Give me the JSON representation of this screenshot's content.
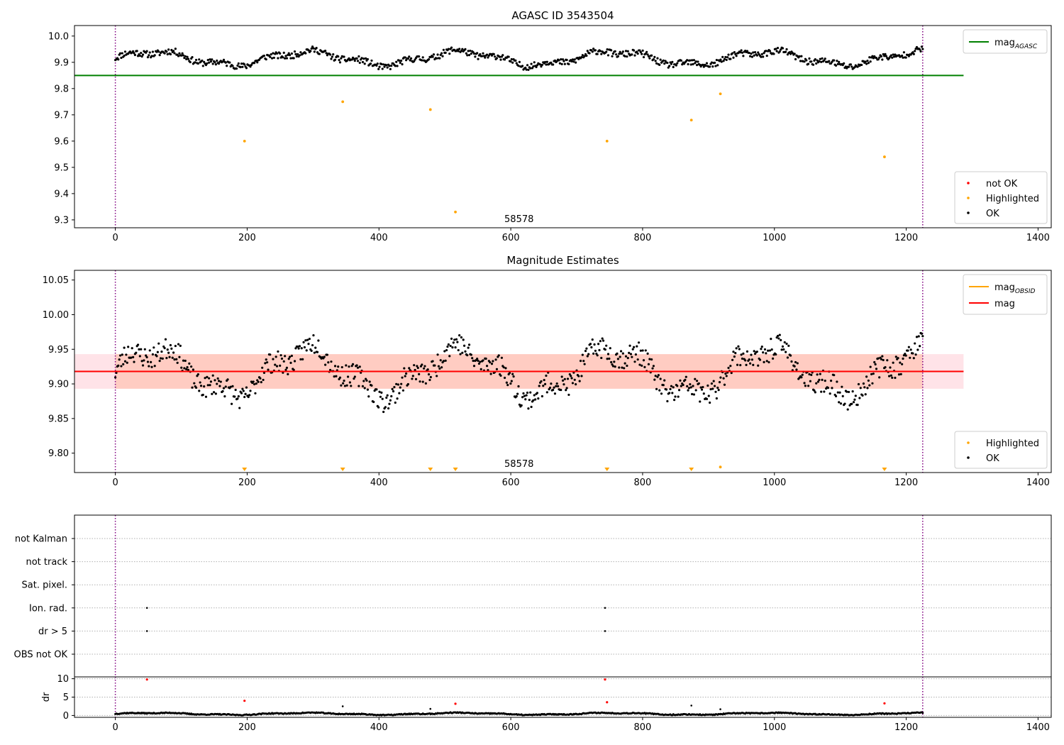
{
  "colors": {
    "ok": "#000000",
    "highlighted": "#ffa500",
    "not_ok": "#ff0000",
    "agasc_line": "#008000",
    "mag_line": "#ff0000",
    "mag_obsid_line": "#ffa500",
    "band_outer": "#ffc0cb",
    "band_inner": "#ffa07a",
    "obs_boundary": "#800080"
  },
  "chart_data": [
    {
      "type": "scatter",
      "title": "AGASC ID 3543504",
      "xlim": [
        -62,
        1420
      ],
      "ylim": [
        9.27,
        10.04
      ],
      "xticks": [
        0,
        200,
        400,
        600,
        800,
        1000,
        1200,
        1400
      ],
      "yticks": [
        9.3,
        9.4,
        9.5,
        9.6,
        9.7,
        9.8,
        9.9,
        10.0
      ],
      "ytick_labels": [
        "9.3",
        "9.4",
        "9.5",
        "9.6",
        "9.7",
        "9.8",
        "9.9",
        "10.0"
      ],
      "grid": false,
      "annotation": "58578",
      "obs_boundaries": [
        0,
        1225
      ],
      "mag_agasc": 9.85,
      "mag_agasc_x_range": [
        -62,
        1287
      ],
      "legend_lines": [
        {
          "label": "mag",
          "sub": "AGASC",
          "color": "#008000"
        }
      ],
      "legend_lines_position": "upper right",
      "legend_markers": [
        {
          "label": "not OK",
          "color": "#ff0000"
        },
        {
          "label": "Highlighted",
          "color": "#ffa500"
        },
        {
          "label": "OK",
          "color": "#000000"
        }
      ],
      "legend_markers_position": "lower right",
      "series": [
        {
          "name": "OK",
          "color": "#000000",
          "band": [
            9.87,
            9.96
          ],
          "x_range": [
            0,
            1225
          ],
          "n": 820
        },
        {
          "name": "Highlighted",
          "color": "#ffa500",
          "points": [
            [
              196,
              9.6
            ],
            [
              345,
              9.75
            ],
            [
              478,
              9.72
            ],
            [
              516,
              9.33
            ],
            [
              746,
              9.6
            ],
            [
              874,
              9.68
            ],
            [
              918,
              9.78
            ],
            [
              1167,
              9.54
            ]
          ]
        }
      ]
    },
    {
      "type": "scatter",
      "title": "Magnitude Estimates",
      "xlim": [
        -62,
        1420
      ],
      "ylim": [
        9.772,
        10.064
      ],
      "xticks": [
        0,
        200,
        400,
        600,
        800,
        1000,
        1200,
        1400
      ],
      "yticks": [
        9.8,
        9.85,
        9.9,
        9.95,
        10.0,
        10.05
      ],
      "ytick_labels": [
        "9.80",
        "9.85",
        "9.90",
        "9.95",
        "10.00",
        "10.05"
      ],
      "grid": false,
      "annotation": "58578",
      "obs_boundaries": [
        0,
        1225
      ],
      "mag": 9.918,
      "mag_obsid": 9.918,
      "band_outer": [
        9.893,
        9.943
      ],
      "band_inner": [
        9.893,
        9.943
      ],
      "band_x_range": [
        -62,
        1287
      ],
      "band_inner_x_range": [
        0,
        1225
      ],
      "legend_lines": [
        {
          "label": "mag",
          "sub": "OBSID",
          "color": "#ffa500"
        },
        {
          "label": "mag",
          "sub": "",
          "color": "#ff0000"
        }
      ],
      "legend_lines_position": "upper right",
      "legend_markers": [
        {
          "label": "Highlighted",
          "color": "#ffa500"
        },
        {
          "label": "OK",
          "color": "#000000"
        }
      ],
      "legend_markers_position": "lower right",
      "series": [
        {
          "name": "OK",
          "color": "#000000",
          "band": [
            9.86,
            9.975
          ],
          "x_range": [
            0,
            1225
          ],
          "n": 820
        },
        {
          "name": "Highlighted",
          "color": "#ffa500",
          "offscale_x": [
            196,
            345,
            478,
            516,
            746,
            874,
            1167
          ],
          "points": [
            [
              918,
              9.78
            ]
          ]
        }
      ]
    },
    {
      "type": "scatter",
      "title": "",
      "xlim": [
        -62,
        1420
      ],
      "obs_boundaries": [
        0,
        1225
      ],
      "flag_labels": [
        "not Kalman",
        "not track",
        "Sat. pixel.",
        "Ion. rad.",
        "dr > 5",
        "OBS not OK"
      ],
      "flags": [
        {
          "label": "Ion. rad.",
          "x": [
            48,
            743
          ]
        },
        {
          "label": "dr > 5",
          "x": [
            48,
            743
          ]
        }
      ],
      "grid": true
    },
    {
      "type": "scatter",
      "title": "",
      "ylabel": "dr",
      "xlim": [
        -62,
        1420
      ],
      "ylim": [
        -0.5,
        10.5
      ],
      "xticks": [
        0,
        200,
        400,
        600,
        800,
        1000,
        1200,
        1400
      ],
      "yticks": [
        0,
        5,
        10
      ],
      "ytick_labels": [
        "0",
        "5",
        "10"
      ],
      "grid": true,
      "obs_boundaries": [
        0,
        1225
      ],
      "series": [
        {
          "name": "OK",
          "color": "#000000",
          "band": [
            0.0,
            0.9
          ],
          "x_range": [
            0,
            1225
          ],
          "n": 820
        },
        {
          "name": "Highlighted",
          "color": "#000000",
          "points": [
            [
              345,
              2.5
            ],
            [
              478,
              1.8
            ],
            [
              874,
              2.7
            ],
            [
              918,
              1.7
            ]
          ]
        },
        {
          "name": "not OK",
          "color": "#ff0000",
          "points": [
            [
              48,
              9.8
            ],
            [
              196,
              4.0
            ],
            [
              516,
              3.2
            ],
            [
              743,
              9.8
            ],
            [
              746,
              3.6
            ],
            [
              1167,
              3.3
            ]
          ]
        }
      ]
    }
  ]
}
